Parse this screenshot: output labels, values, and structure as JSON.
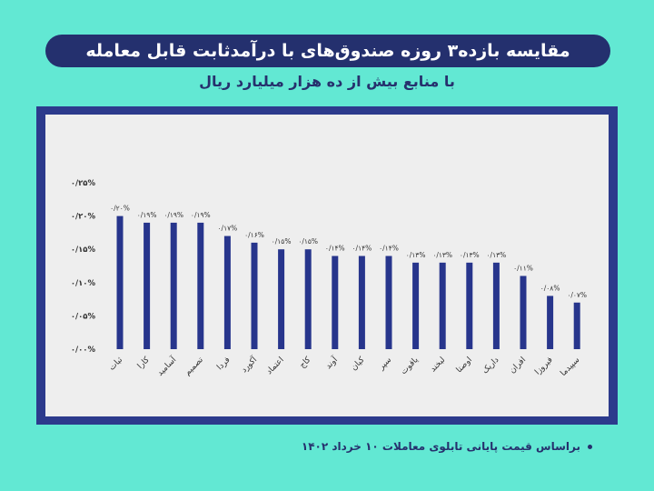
{
  "title": "مقایسه بازده۳ روزه صندوق‌های با درآمدثابت قابل معامله",
  "subtitle": "با منابع بیش از ده هزار میلیارد ریال",
  "footnote": "براساس قیمت پایانی تابلوی معاملات ۱۰ خرداد ۱۴۰۲",
  "colors": {
    "background": "#62e8d3",
    "bar": "#27358c",
    "frame": "#2c3a8c",
    "panel": "#eeeeee",
    "title_bg": "#24306e"
  },
  "chart_data": {
    "type": "bar",
    "title": "",
    "xlabel": "",
    "ylabel": "",
    "ylim": [
      0,
      0.25
    ],
    "grid": false,
    "legend": "none",
    "ytick_values": [
      0,
      0.05,
      0.1,
      0.15,
      0.2,
      0.25
    ],
    "ytick_labels": [
      "۰/۰۰%",
      "۰/۰۵%",
      "۰/۱۰%",
      "۰/۱۵%",
      "۰/۲۰%",
      "۰/۲۵%"
    ],
    "categories": [
      "ثبات",
      "کارا",
      "آساميد",
      "تصمیم",
      "فردا",
      "آکورد",
      "اعتماد",
      "کاج",
      "آوند",
      "کیان",
      "سپر",
      "یاقوت",
      "لبخند",
      "اوصتا",
      "داریک",
      "افران",
      "فیروزا",
      "سپیدما"
    ],
    "values": [
      0.2,
      0.19,
      0.19,
      0.19,
      0.17,
      0.16,
      0.15,
      0.15,
      0.14,
      0.14,
      0.14,
      0.13,
      0.13,
      0.13,
      0.13,
      0.11,
      0.08,
      0.07
    ],
    "data_labels": [
      "۰/۲۰%",
      "۰/۱۹%",
      "۰/۱۹%",
      "۰/۱۹%",
      "۰/۱۷%",
      "۰/۱۶%",
      "۰/۱۵%",
      "۰/۱۵%",
      "۰/۱۴%",
      "۰/۱۴%",
      "۰/۱۴%",
      "۰/۱۳%",
      "۰/۱۳%",
      "۰/۱۳%",
      "۰/۱۳%",
      "۰/۱۱%",
      "۰/۰۸%",
      "۰/۰۷%"
    ]
  }
}
